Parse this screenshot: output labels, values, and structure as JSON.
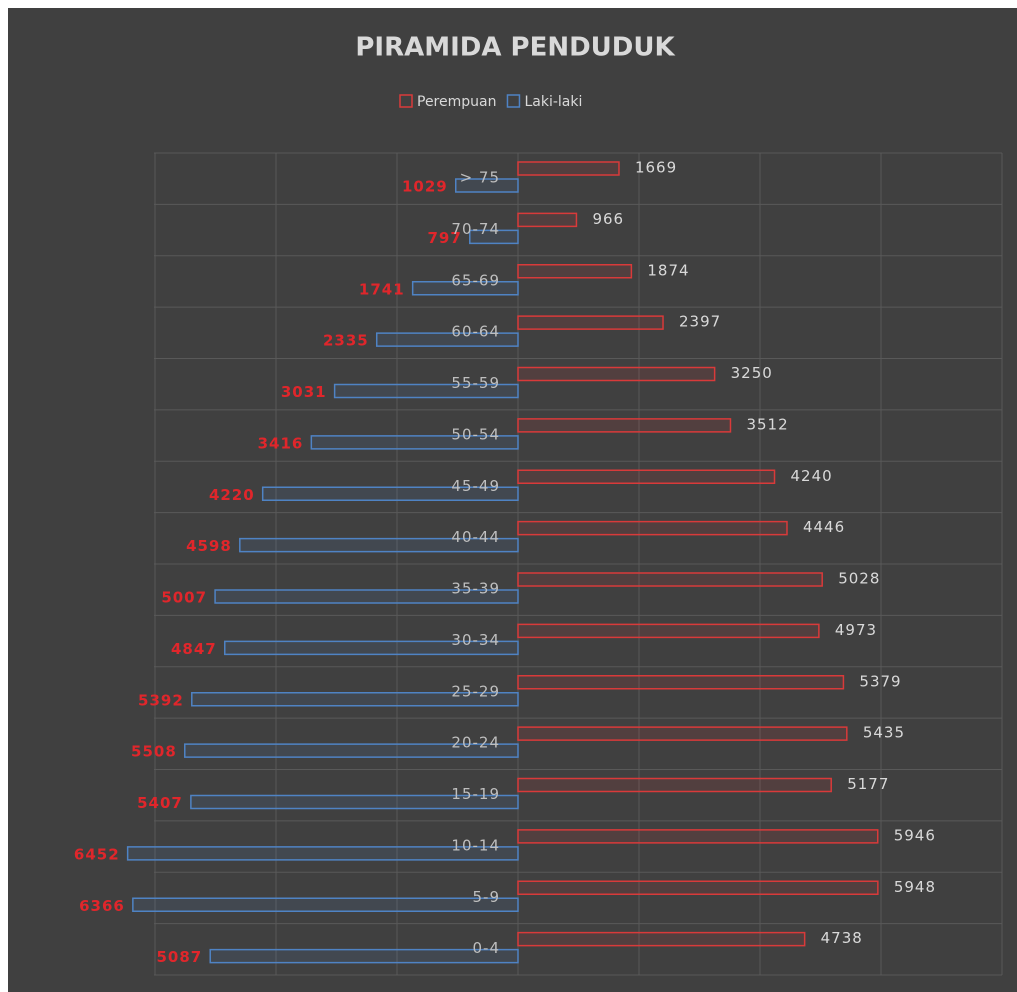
{
  "chart_data": {
    "type": "pyramid",
    "title": "PIRAMIDA PENDUDUK",
    "categories": [
      "> 75",
      "70-74",
      "65-69",
      "60-64",
      "55-59",
      "50-54",
      "45-49",
      "40-44",
      "35-39",
      "30-34",
      "25-29",
      "20-24",
      "15-19",
      "10-14",
      "5-9",
      "0-4"
    ],
    "series": [
      {
        "name": "Perempuan",
        "color": "#d93a3a",
        "values": [
          1669,
          966,
          1874,
          2397,
          3250,
          3512,
          4240,
          4446,
          5028,
          4973,
          5379,
          5435,
          5177,
          5946,
          5948,
          4738
        ]
      },
      {
        "name": "Laki-laki",
        "color": "#4f83c4",
        "values": [
          1029,
          797,
          1741,
          2335,
          3031,
          3416,
          4220,
          4598,
          5007,
          4847,
          5392,
          5508,
          5407,
          6452,
          6366,
          5087
        ]
      }
    ],
    "xlim": [
      -8000,
      8000
    ],
    "xticks": [
      -6000,
      -4000,
      -2000,
      0,
      2000,
      4000,
      6000,
      8000
    ],
    "grid": true
  }
}
